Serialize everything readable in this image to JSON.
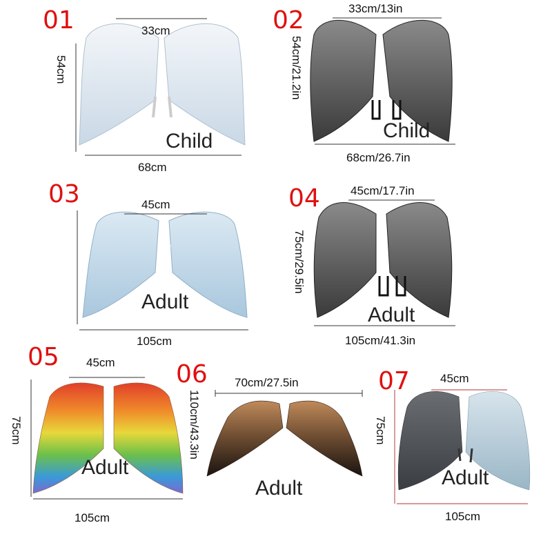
{
  "colors": {
    "number": "#e01010",
    "white_wing": "#dfe8f0",
    "grey_wing": "#5a5a5a",
    "blue_wing": "#c8dcea",
    "brown_wing": "#8a5a3a"
  },
  "items": [
    {
      "number": "01",
      "top": "33cm",
      "side": "54cm",
      "bottom": "68cm",
      "size_label": "Child",
      "wing_color": "white"
    },
    {
      "number": "02",
      "top": "33cm/13in",
      "side": "54cm/21.2in",
      "bottom": "68cm/26.7in",
      "size_label": "Child",
      "wing_color": "grey"
    },
    {
      "number": "03",
      "top": "45cm",
      "side": "",
      "bottom": "105cm",
      "size_label": "Adult",
      "wing_color": "light-blue"
    },
    {
      "number": "04",
      "top": "45cm/17.7in",
      "side": "75cm/29.5in",
      "bottom": "105cm/41.3in",
      "size_label": "Adult",
      "wing_color": "grey"
    },
    {
      "number": "05",
      "top": "45cm",
      "side": "75cm",
      "bottom": "105cm",
      "size_label": "Adult",
      "wing_color": "rainbow"
    },
    {
      "number": "06",
      "top": "70cm/27.5in",
      "side": "110cm/43.3in",
      "bottom": "",
      "size_label": "Adult",
      "wing_color": "brown-black"
    },
    {
      "number": "07",
      "top": "45cm",
      "side": "75cm",
      "bottom": "105cm",
      "size_label": "Adult",
      "wing_color": "grey-and-light-blue"
    }
  ]
}
